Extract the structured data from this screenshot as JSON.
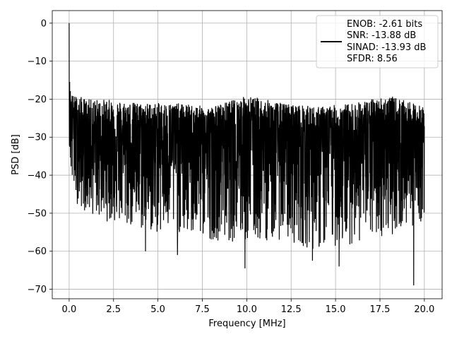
{
  "chart_data": {
    "type": "line",
    "title": "",
    "xlabel": "Frequency [MHz]",
    "ylabel": "PSD [dB]",
    "xlim": [
      -0.95,
      21.0
    ],
    "ylim": [
      -72.5,
      3.3
    ],
    "x_ticks": [
      0.0,
      2.5,
      5.0,
      7.5,
      10.0,
      12.5,
      15.0,
      17.5,
      20.0
    ],
    "x_tick_labels": [
      "0.0",
      "2.5",
      "5.0",
      "7.5",
      "10.0",
      "12.5",
      "15.0",
      "17.5",
      "20.0"
    ],
    "y_ticks": [
      0,
      -10,
      -20,
      -30,
      -40,
      -50,
      -60,
      -70
    ],
    "y_tick_labels": [
      "0",
      "−10",
      "−20",
      "−30",
      "−40",
      "−50",
      "−60",
      "−70"
    ],
    "grid": true,
    "legend_position": "top-right",
    "legend_entries": [
      "ENOB: -2.61 bits",
      "SNR: -13.88 dB",
      "SINAD: -13.93 dB",
      "SFDR: 8.56"
    ],
    "series": [
      {
        "color": "#000000",
        "description_points": {
          "x": [
            0.0,
            0.02,
            0.05,
            0.1,
            0.2,
            0.5,
            1.0,
            2.0,
            4.0,
            6.0,
            8.0,
            10.0,
            12.0,
            14.0,
            16.0,
            18.0,
            20.0
          ],
          "upper": [
            0.0,
            -14,
            -16,
            -18,
            -19,
            -19,
            -20,
            -20,
            -21,
            -21,
            -22,
            -19,
            -21,
            -22,
            -21,
            -19,
            -22
          ],
          "lower": [
            -30,
            -33,
            -36,
            -40,
            -45,
            -48,
            -50,
            -52,
            -55,
            -56,
            -57,
            -58,
            -57,
            -60,
            -58,
            -56,
            -52
          ]
        },
        "notable_minima": [
          {
            "x": 4.3,
            "y": -60
          },
          {
            "x": 6.1,
            "y": -61
          },
          {
            "x": 9.9,
            "y": -64.5
          },
          {
            "x": 13.7,
            "y": -62.5
          },
          {
            "x": 15.2,
            "y": -64
          },
          {
            "x": 19.4,
            "y": -69
          }
        ]
      }
    ]
  }
}
